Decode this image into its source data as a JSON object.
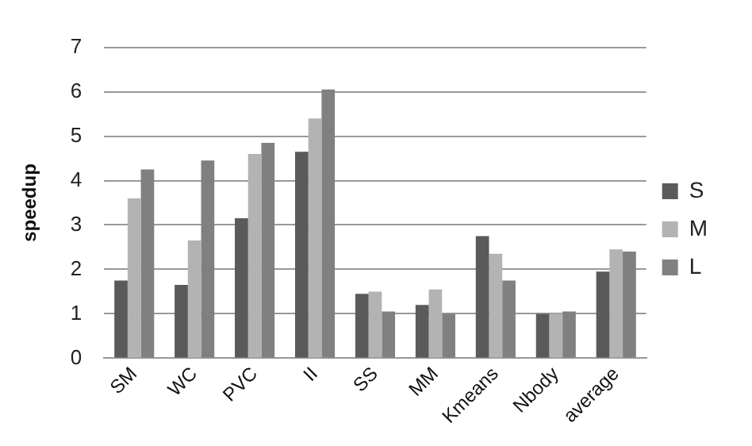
{
  "chart_data": {
    "type": "bar",
    "ylabel": "speedup",
    "categories": [
      "SM",
      "WC",
      "PVC",
      "II",
      "SS",
      "MM",
      "Kmeans",
      "Nbody",
      "average"
    ],
    "series": [
      {
        "name": "S",
        "color": "#5a5a5a",
        "values": [
          1.75,
          1.65,
          3.15,
          4.65,
          1.45,
          1.2,
          2.75,
          1.0,
          1.95
        ]
      },
      {
        "name": "M",
        "color": "#b3b3b3",
        "values": [
          3.6,
          2.65,
          4.6,
          5.4,
          1.5,
          1.55,
          2.35,
          1.0,
          2.45
        ]
      },
      {
        "name": "L",
        "color": "#808080",
        "values": [
          4.25,
          4.45,
          4.85,
          6.05,
          1.05,
          1.0,
          1.75,
          1.05,
          2.4
        ]
      }
    ],
    "ylim": [
      0,
      7
    ],
    "yticks": [
      0,
      1,
      2,
      3,
      4,
      5,
      6,
      7
    ],
    "grid": "y",
    "legend": "right"
  }
}
